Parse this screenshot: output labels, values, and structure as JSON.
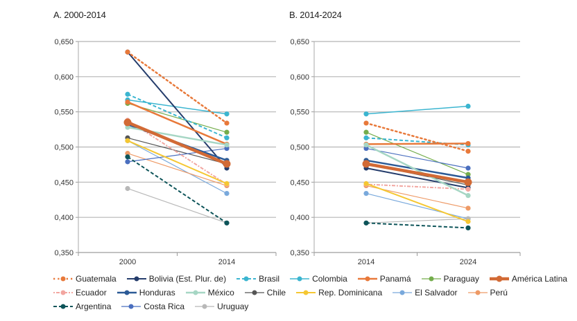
{
  "chart_data": [
    {
      "type": "line",
      "title": "A. 2000-2014",
      "categories": [
        "2000",
        "2014"
      ],
      "ylim": [
        0.35,
        0.65
      ],
      "yticks": [
        "0,350",
        "0,400",
        "0,450",
        "0,500",
        "0,550",
        "0,600",
        "0,650"
      ],
      "grid": true,
      "series": [
        {
          "name": "Guatemala",
          "values": [
            0.635,
            0.534
          ]
        },
        {
          "name": "Bolivia (Est. Plur. de)",
          "values": [
            0.635,
            0.47
          ]
        },
        {
          "name": "Brasil",
          "values": [
            0.575,
            0.513
          ]
        },
        {
          "name": "Colombia",
          "values": [
            0.567,
            0.547
          ]
        },
        {
          "name": "Panamá",
          "values": [
            0.564,
            0.504
          ]
        },
        {
          "name": "Paraguay",
          "values": [
            0.562,
            0.521
          ]
        },
        {
          "name": "América Latina",
          "values": [
            0.535,
            0.476
          ]
        },
        {
          "name": "Ecuador",
          "values": [
            0.538,
            0.447
          ]
        },
        {
          "name": "Honduras",
          "values": [
            0.532,
            0.481
          ]
        },
        {
          "name": "México",
          "values": [
            0.528,
            0.503
          ]
        },
        {
          "name": "Chile",
          "values": [
            0.513,
            0.476
          ]
        },
        {
          "name": "Rep. Dominicana",
          "values": [
            0.509,
            0.448
          ]
        },
        {
          "name": "El Salvador",
          "values": [
            0.509,
            0.434
          ]
        },
        {
          "name": "Perú",
          "values": [
            0.491,
            0.445
          ]
        },
        {
          "name": "Argentina",
          "values": [
            0.486,
            0.392
          ]
        },
        {
          "name": "Costa Rica",
          "values": [
            0.479,
            0.498
          ]
        },
        {
          "name": "Uruguay",
          "values": [
            0.441,
            0.392
          ]
        }
      ]
    },
    {
      "type": "line",
      "title": "B. 2014-2024",
      "categories": [
        "2014",
        "2024"
      ],
      "ylim": [
        0.35,
        0.65
      ],
      "yticks": [
        "0,350",
        "0,400",
        "0,450",
        "0,500",
        "0,550",
        "0,600",
        "0,650"
      ],
      "grid": true,
      "series": [
        {
          "name": "Guatemala",
          "values": [
            0.534,
            0.494
          ]
        },
        {
          "name": "Bolivia (Est. Plur. de)",
          "values": [
            0.47,
            0.442
          ]
        },
        {
          "name": "Brasil",
          "values": [
            0.513,
            0.503
          ]
        },
        {
          "name": "Colombia",
          "values": [
            0.547,
            0.558
          ]
        },
        {
          "name": "Panamá",
          "values": [
            0.504,
            0.505
          ]
        },
        {
          "name": "Paraguay",
          "values": [
            0.521,
            0.461
          ]
        },
        {
          "name": "América Latina",
          "values": [
            0.476,
            0.45
          ]
        },
        {
          "name": "Ecuador",
          "values": [
            0.447,
            0.44
          ]
        },
        {
          "name": "Honduras",
          "values": [
            0.481,
            0.456
          ]
        },
        {
          "name": "México",
          "values": [
            0.503,
            0.431
          ]
        },
        {
          "name": "Chile",
          "values": [
            0.476,
            0.446
          ]
        },
        {
          "name": "Rep. Dominicana",
          "values": [
            0.448,
            0.394
          ]
        },
        {
          "name": "El Salvador",
          "values": [
            0.434,
            0.398
          ]
        },
        {
          "name": "Perú",
          "values": [
            0.445,
            0.413
          ]
        },
        {
          "name": "Argentina",
          "values": [
            0.392,
            0.385
          ]
        },
        {
          "name": "Costa Rica",
          "values": [
            0.498,
            0.47
          ]
        },
        {
          "name": "Uruguay",
          "values": [
            0.392,
            0.398
          ]
        }
      ]
    }
  ],
  "styles": {
    "Guatemala": {
      "color": "#e8793a",
      "dash": "dot",
      "width": 2.5
    },
    "Bolivia (Est. Plur. de)": {
      "color": "#243c6b",
      "dash": "solid",
      "width": 2
    },
    "Brasil": {
      "color": "#3bb5d0",
      "dash": "dash",
      "width": 2
    },
    "Colombia": {
      "color": "#3bb5d0",
      "dash": "solid",
      "width": 1.5
    },
    "Panamá": {
      "color": "#e8793a",
      "dash": "solid",
      "width": 2.5
    },
    "Paraguay": {
      "color": "#74ad4c",
      "dash": "solid",
      "width": 1.2
    },
    "América Latina": {
      "color": "#d26a35",
      "dash": "solid",
      "width": 4.5
    },
    "Ecuador": {
      "color": "#f2a6a0",
      "dash": "dotdash",
      "width": 2
    },
    "Honduras": {
      "color": "#2b5a96",
      "dash": "solid",
      "width": 2.5
    },
    "México": {
      "color": "#a6d6c4",
      "dash": "solid",
      "width": 2.5
    },
    "Chile": {
      "color": "#555555",
      "dash": "solid",
      "width": 1.2
    },
    "Rep. Dominicana": {
      "color": "#f5c732",
      "dash": "solid",
      "width": 2
    },
    "El Salvador": {
      "color": "#79a9dc",
      "dash": "solid",
      "width": 1.2
    },
    "Perú": {
      "color": "#ee9a66",
      "dash": "solid",
      "width": 1.2
    },
    "Argentina": {
      "color": "#0d5459",
      "dash": "dash",
      "width": 2
    },
    "Costa Rica": {
      "color": "#4a6fbf",
      "dash": "solid",
      "width": 1.2
    },
    "Uruguay": {
      "color": "#b8b8b8",
      "dash": "solid",
      "width": 1.2
    }
  },
  "legend": {
    "rows": [
      [
        "Guatemala",
        "Bolivia (Est. Plur. de)",
        "Brasil",
        "Colombia",
        "Panamá",
        "Paraguay",
        "América Latina"
      ],
      [
        "Ecuador",
        "Honduras",
        "México",
        "Chile",
        "Rep. Dominicana",
        "El Salvador",
        "Perú"
      ],
      [
        "Argentina",
        "Costa Rica",
        "Uruguay"
      ]
    ]
  }
}
